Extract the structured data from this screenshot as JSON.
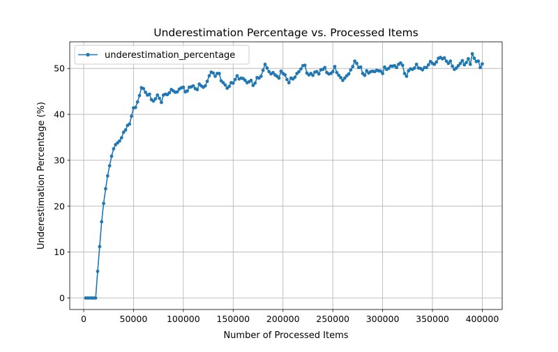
{
  "chart_data": {
    "type": "line",
    "title": "Underestimation Percentage vs. Processed Items",
    "xlabel": "Number of Processed Items",
    "ylabel": "Underestimation Percentage (%)",
    "xlim": [
      -14000,
      420000
    ],
    "ylim": [
      -2.5,
      55.8
    ],
    "xticks": [
      0,
      50000,
      100000,
      150000,
      200000,
      250000,
      300000,
      350000,
      400000
    ],
    "xtick_labels": [
      "0",
      "50000",
      "100000",
      "150000",
      "200000",
      "250000",
      "300000",
      "350000",
      "400000"
    ],
    "yticks": [
      0,
      10,
      20,
      30,
      40,
      50
    ],
    "ytick_labels": [
      "0",
      "10",
      "20",
      "30",
      "40",
      "50"
    ],
    "grid": true,
    "legend": {
      "position": "top-left",
      "entries": [
        "underestimation_percentage"
      ]
    },
    "series": [
      {
        "name": "underestimation_percentage",
        "color": "#1f77b4",
        "marker": "circle",
        "points": [
          [
            2000,
            0
          ],
          [
            4000,
            0
          ],
          [
            6000,
            0
          ],
          [
            8000,
            0
          ],
          [
            10000,
            0
          ],
          [
            12000,
            0
          ],
          [
            14000,
            5.8
          ],
          [
            16000,
            11.2
          ],
          [
            18000,
            16.6
          ],
          [
            20000,
            20.6
          ],
          [
            22000,
            23.8
          ],
          [
            24000,
            26.6
          ],
          [
            26000,
            28.8
          ],
          [
            28000,
            30.9
          ],
          [
            30000,
            32.5
          ],
          [
            32000,
            33.4
          ],
          [
            34000,
            33.8
          ],
          [
            36000,
            34.2
          ],
          [
            38000,
            34.9
          ],
          [
            40000,
            36.1
          ],
          [
            42000,
            36.6
          ],
          [
            44000,
            37.6
          ],
          [
            46000,
            37.9
          ],
          [
            48000,
            39.6
          ],
          [
            50000,
            41.4
          ],
          [
            52000,
            41.5
          ],
          [
            54000,
            42.7
          ],
          [
            56000,
            44.1
          ],
          [
            58000,
            45.8
          ],
          [
            60000,
            45.6
          ],
          [
            62000,
            44.8
          ],
          [
            64000,
            44.2
          ],
          [
            66000,
            44.4
          ],
          [
            68000,
            43.2
          ],
          [
            70000,
            42.9
          ],
          [
            72000,
            43.4
          ],
          [
            74000,
            44.2
          ],
          [
            76000,
            43.5
          ],
          [
            78000,
            42.6
          ],
          [
            80000,
            44.2
          ],
          [
            82000,
            44.4
          ],
          [
            84000,
            44.3
          ],
          [
            86000,
            44.7
          ],
          [
            88000,
            45.4
          ],
          [
            90000,
            45.1
          ],
          [
            92000,
            44.8
          ],
          [
            94000,
            44.9
          ],
          [
            96000,
            45.5
          ],
          [
            98000,
            45.8
          ],
          [
            100000,
            45.9
          ],
          [
            102000,
            44.9
          ],
          [
            104000,
            45.1
          ],
          [
            106000,
            45.9
          ],
          [
            108000,
            46.0
          ],
          [
            110000,
            46.2
          ],
          [
            112000,
            45.6
          ],
          [
            114000,
            45.4
          ],
          [
            116000,
            46.6
          ],
          [
            118000,
            46.2
          ],
          [
            120000,
            45.9
          ],
          [
            122000,
            46.2
          ],
          [
            124000,
            47.2
          ],
          [
            126000,
            48.4
          ],
          [
            128000,
            49.2
          ],
          [
            130000,
            49.0
          ],
          [
            132000,
            48.3
          ],
          [
            134000,
            48.9
          ],
          [
            136000,
            48.9
          ],
          [
            138000,
            47.3
          ],
          [
            140000,
            46.9
          ],
          [
            142000,
            46.4
          ],
          [
            144000,
            45.7
          ],
          [
            146000,
            46.1
          ],
          [
            148000,
            46.9
          ],
          [
            150000,
            46.8
          ],
          [
            152000,
            47.6
          ],
          [
            154000,
            48.4
          ],
          [
            156000,
            47.7
          ],
          [
            158000,
            47.9
          ],
          [
            160000,
            47.8
          ],
          [
            162000,
            47.4
          ],
          [
            164000,
            46.9
          ],
          [
            166000,
            47.1
          ],
          [
            168000,
            47.4
          ],
          [
            170000,
            46.3
          ],
          [
            172000,
            46.8
          ],
          [
            174000,
            48.0
          ],
          [
            176000,
            47.9
          ],
          [
            178000,
            48.3
          ],
          [
            180000,
            49.6
          ],
          [
            182000,
            50.9
          ],
          [
            184000,
            50.1
          ],
          [
            186000,
            49.3
          ],
          [
            188000,
            48.8
          ],
          [
            190000,
            49.1
          ],
          [
            192000,
            48.6
          ],
          [
            194000,
            48.3
          ],
          [
            196000,
            47.9
          ],
          [
            198000,
            49.4
          ],
          [
            200000,
            48.9
          ],
          [
            202000,
            48.6
          ],
          [
            204000,
            47.6
          ],
          [
            206000,
            46.9
          ],
          [
            208000,
            47.9
          ],
          [
            210000,
            47.7
          ],
          [
            212000,
            48.1
          ],
          [
            214000,
            48.9
          ],
          [
            216000,
            49.3
          ],
          [
            218000,
            49.9
          ],
          [
            220000,
            50.6
          ],
          [
            222000,
            50.7
          ],
          [
            224000,
            49.0
          ],
          [
            226000,
            48.6
          ],
          [
            228000,
            48.9
          ],
          [
            230000,
            48.5
          ],
          [
            232000,
            49.2
          ],
          [
            234000,
            49.3
          ],
          [
            236000,
            48.8
          ],
          [
            238000,
            49.7
          ],
          [
            240000,
            49.8
          ],
          [
            242000,
            50.2
          ],
          [
            244000,
            49.1
          ],
          [
            246000,
            48.8
          ],
          [
            248000,
            48.9
          ],
          [
            250000,
            49.3
          ],
          [
            252000,
            50.4
          ],
          [
            254000,
            49.1
          ],
          [
            256000,
            48.5
          ],
          [
            258000,
            48.0
          ],
          [
            260000,
            47.4
          ],
          [
            262000,
            47.9
          ],
          [
            264000,
            48.4
          ],
          [
            266000,
            48.8
          ],
          [
            268000,
            49.7
          ],
          [
            270000,
            50.4
          ],
          [
            272000,
            51.6
          ],
          [
            274000,
            51.1
          ],
          [
            276000,
            50.2
          ],
          [
            278000,
            50.3
          ],
          [
            280000,
            48.9
          ],
          [
            282000,
            48.5
          ],
          [
            284000,
            49.5
          ],
          [
            286000,
            49.0
          ],
          [
            288000,
            49.3
          ],
          [
            290000,
            49.4
          ],
          [
            292000,
            49.3
          ],
          [
            294000,
            49.6
          ],
          [
            296000,
            49.5
          ],
          [
            298000,
            49.4
          ],
          [
            300000,
            48.9
          ],
          [
            302000,
            50.3
          ],
          [
            304000,
            49.8
          ],
          [
            306000,
            50.0
          ],
          [
            308000,
            50.5
          ],
          [
            310000,
            50.5
          ],
          [
            312000,
            50.6
          ],
          [
            314000,
            50.2
          ],
          [
            316000,
            50.9
          ],
          [
            318000,
            51.2
          ],
          [
            320000,
            50.7
          ],
          [
            322000,
            48.9
          ],
          [
            324000,
            48.3
          ],
          [
            326000,
            49.5
          ],
          [
            328000,
            49.9
          ],
          [
            330000,
            49.8
          ],
          [
            332000,
            50.1
          ],
          [
            334000,
            50.9
          ],
          [
            336000,
            50.1
          ],
          [
            338000,
            50.0
          ],
          [
            340000,
            49.7
          ],
          [
            342000,
            50.2
          ],
          [
            344000,
            50.2
          ],
          [
            346000,
            50.8
          ],
          [
            348000,
            51.5
          ],
          [
            350000,
            51.1
          ],
          [
            352000,
            50.9
          ],
          [
            354000,
            51.4
          ],
          [
            356000,
            52.2
          ],
          [
            358000,
            52.4
          ],
          [
            360000,
            52.1
          ],
          [
            362000,
            52.3
          ],
          [
            364000,
            51.6
          ],
          [
            366000,
            51.1
          ],
          [
            368000,
            51.6
          ],
          [
            370000,
            50.5
          ],
          [
            372000,
            49.8
          ],
          [
            374000,
            50.1
          ],
          [
            376000,
            50.6
          ],
          [
            378000,
            51.1
          ],
          [
            380000,
            51.7
          ],
          [
            382000,
            50.8
          ],
          [
            384000,
            51.3
          ],
          [
            386000,
            52.1
          ],
          [
            388000,
            50.9
          ],
          [
            390000,
            53.2
          ],
          [
            392000,
            52.2
          ],
          [
            394000,
            51.5
          ],
          [
            396000,
            51.6
          ],
          [
            398000,
            50.2
          ],
          [
            400000,
            51.0
          ]
        ]
      }
    ]
  }
}
